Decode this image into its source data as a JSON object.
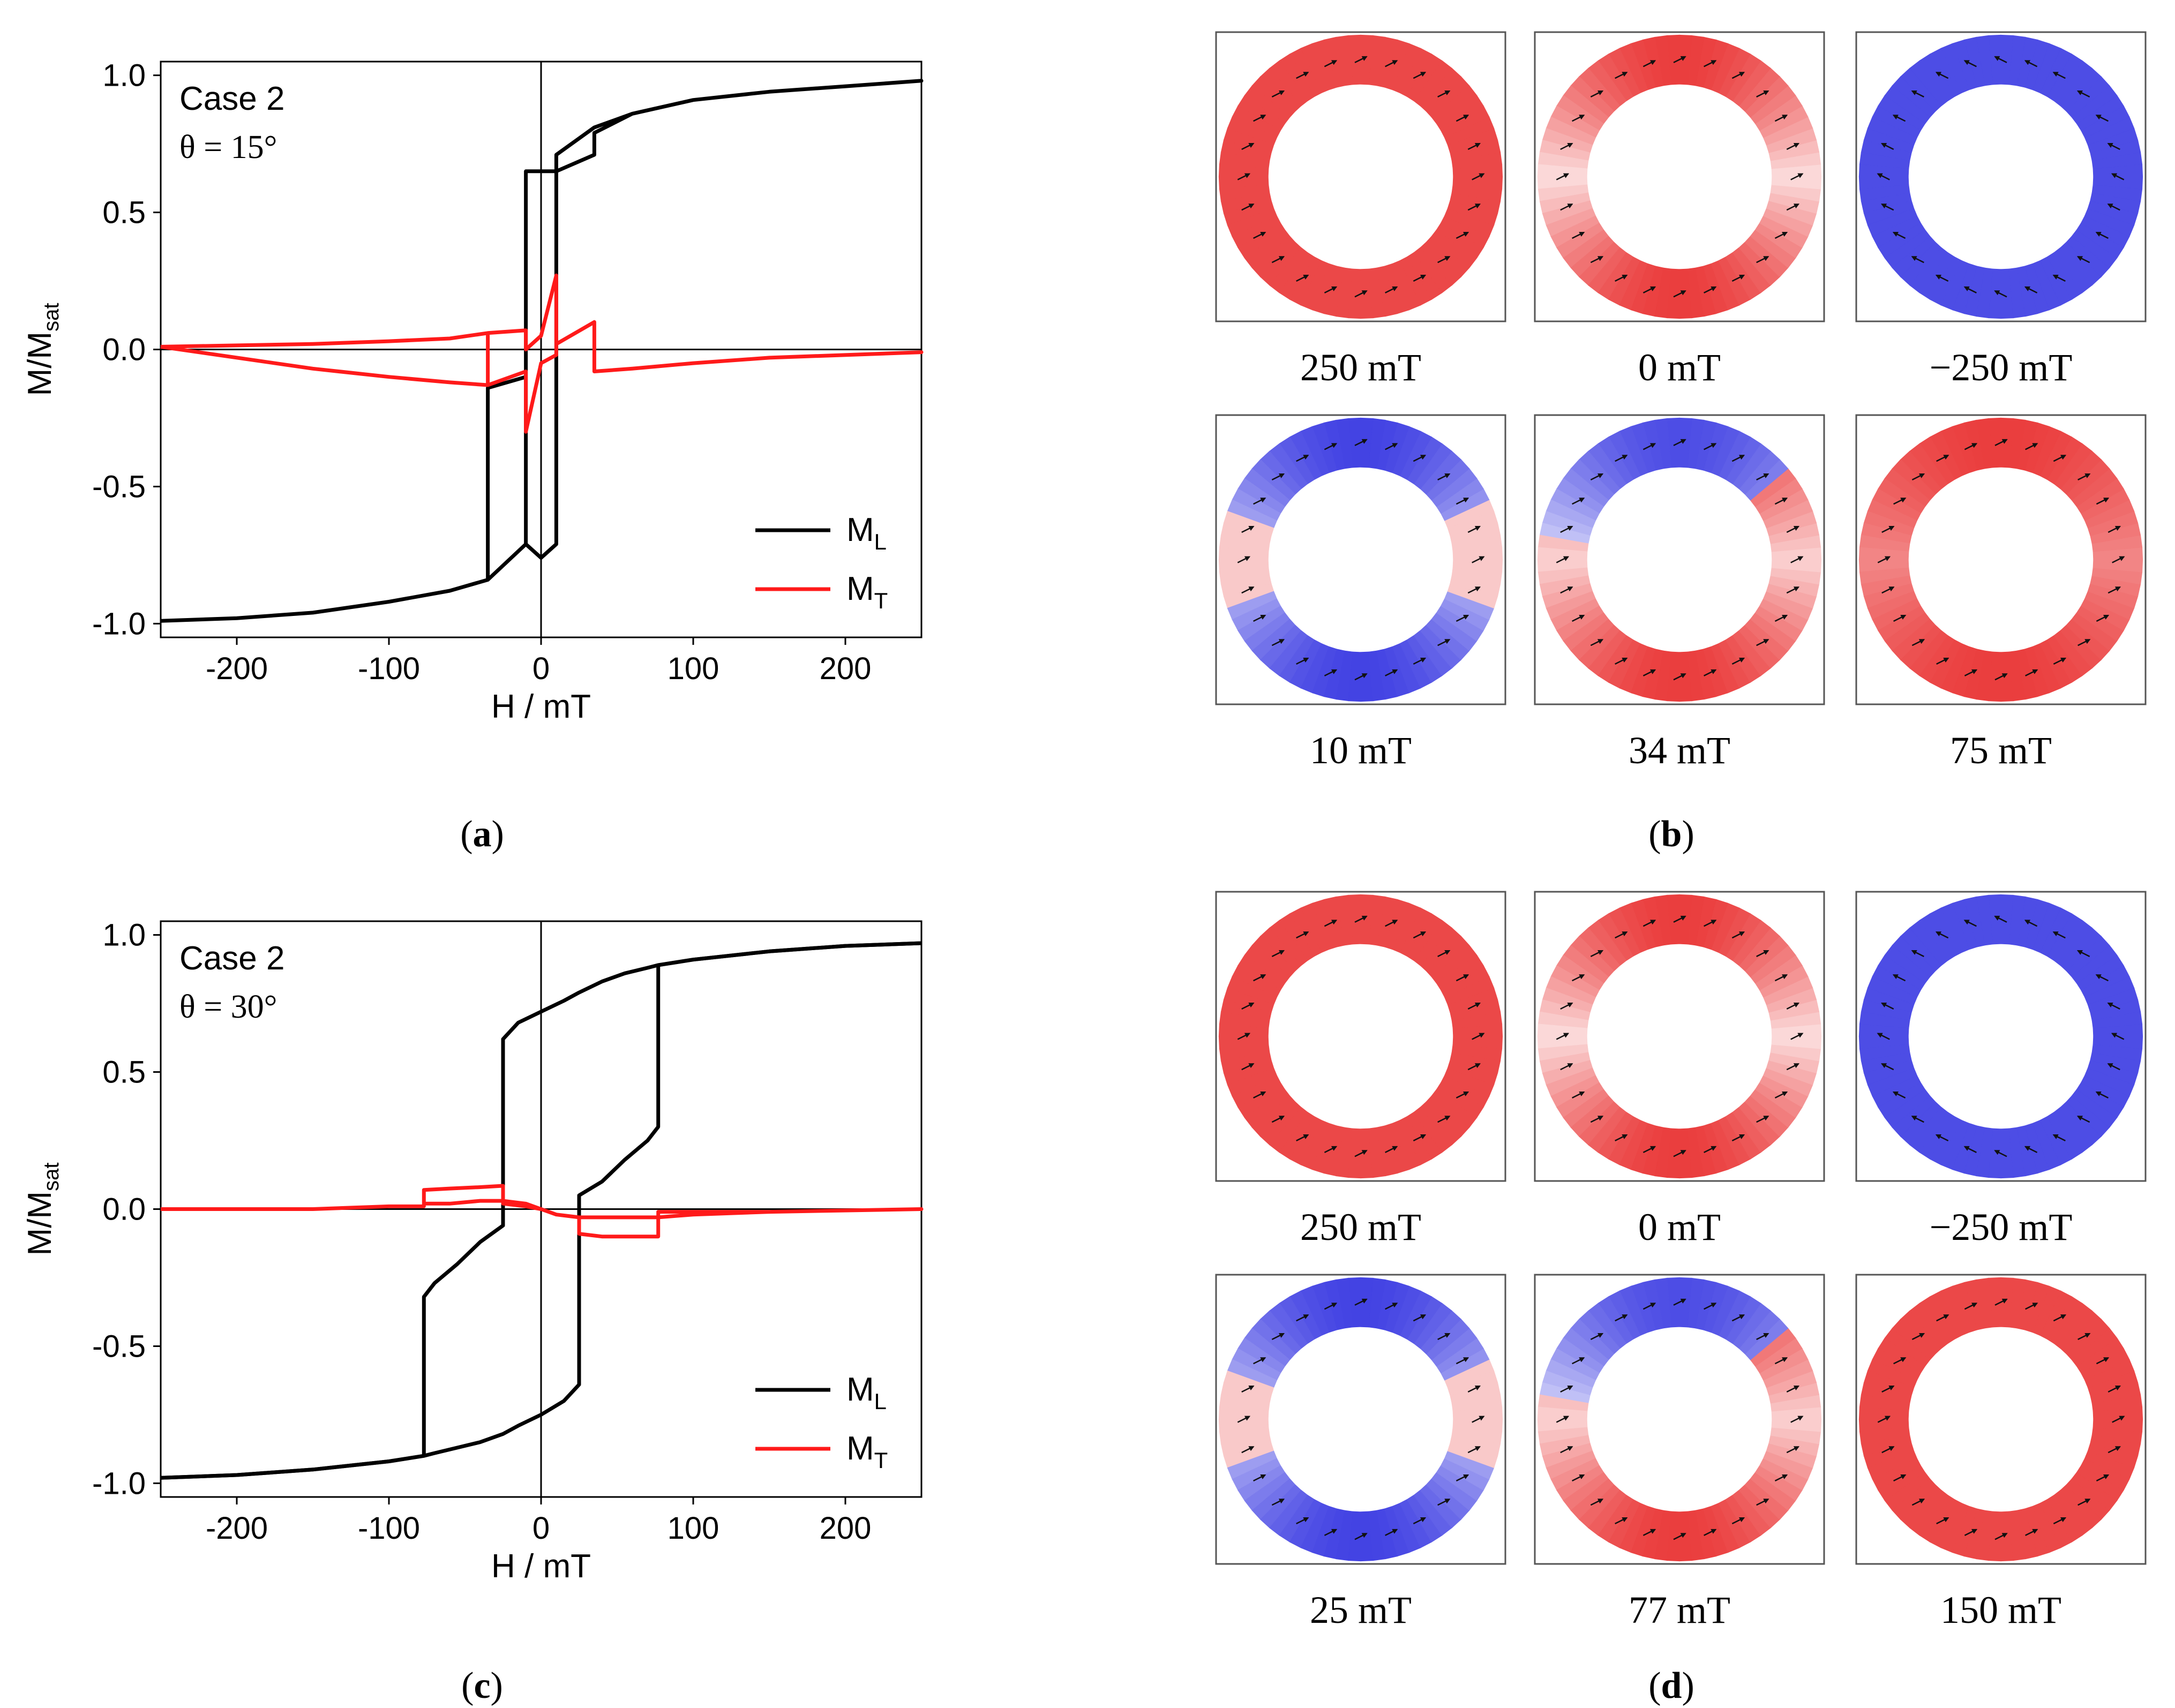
{
  "figure": {
    "panels": {
      "a": {
        "letter": "a"
      },
      "b": {
        "letter": "b"
      },
      "c": {
        "letter": "c"
      },
      "d": {
        "letter": "d"
      }
    },
    "ring_maps": {
      "b": [
        {
          "label": "250 mT",
          "state": "red"
        },
        {
          "label": "0 mT",
          "state": "onion"
        },
        {
          "label": "−250 mT",
          "state": "blue"
        },
        {
          "label": "10 mT",
          "state": "mixed-blue"
        },
        {
          "label": "34 mT",
          "state": "mixed-red"
        },
        {
          "label": "75 mT",
          "state": "red-walls"
        }
      ],
      "d": [
        {
          "label": "250 mT",
          "state": "red"
        },
        {
          "label": "0 mT",
          "state": "onion"
        },
        {
          "label": "−250 mT",
          "state": "blue"
        },
        {
          "label": "25 mT",
          "state": "mixed-blue"
        },
        {
          "label": "77 mT",
          "state": "mixed-red"
        },
        {
          "label": "150 mT",
          "state": "red"
        }
      ]
    },
    "colors": {
      "ml": "#000000",
      "mt": "#ff1a1a",
      "red_state": "#ea2a2a",
      "blue_state": "#2e2ee0"
    }
  },
  "chart_data": [
    {
      "type": "line",
      "panel": "a",
      "annotation": [
        "Case 2",
        "θ = 15°"
      ],
      "xlabel": "H / mT",
      "ylabel": {
        "main": "M/M",
        "sub": "sat"
      },
      "xlim": [
        -250,
        250
      ],
      "ylim": [
        -1.05,
        1.05
      ],
      "xticks": [
        -200,
        -100,
        0,
        100,
        200
      ],
      "xtick_labels": [
        "-200",
        "-100",
        "0",
        "100",
        "200"
      ],
      "yticks": [
        -1.0,
        -0.5,
        0.0,
        0.5,
        1.0
      ],
      "ytick_labels": [
        "-1.0",
        "-0.5",
        "0.0",
        "0.5",
        "1.0"
      ],
      "legend": {
        "position": "bottom-right",
        "entries": [
          {
            "name": "M",
            "sub": "L",
            "series": "ML"
          },
          {
            "name": "M",
            "sub": "T",
            "series": "MT"
          }
        ]
      },
      "series": [
        {
          "name": "ML",
          "color": "#000000",
          "x": [
            -250,
            -200,
            -150,
            -100,
            -60,
            -35,
            -35,
            -10,
            -10,
            0,
            10,
            10,
            35,
            35,
            60,
            100,
            150,
            200,
            250,
            250,
            200,
            150,
            100,
            60,
            35,
            10,
            10,
            -10,
            -10,
            -35,
            -60,
            -100,
            -150,
            -200,
            -250
          ],
          "y": [
            -0.99,
            -0.98,
            -0.96,
            -0.92,
            -0.88,
            -0.84,
            -0.14,
            -0.1,
            -0.71,
            -0.76,
            -0.71,
            0.65,
            0.71,
            0.79,
            0.86,
            0.91,
            0.94,
            0.96,
            0.98,
            0.98,
            0.96,
            0.94,
            0.91,
            0.86,
            0.81,
            0.71,
            0.65,
            0.65,
            -0.71,
            -0.84,
            -0.88,
            -0.92,
            -0.96,
            -0.98,
            -0.99
          ]
        },
        {
          "name": "MT",
          "color": "#ff1a1a",
          "x": [
            -250,
            -150,
            -100,
            -60,
            -35,
            -35,
            -10,
            -10,
            0,
            10,
            10,
            35,
            35,
            60,
            100,
            150,
            250,
            250,
            150,
            100,
            60,
            35,
            35,
            10,
            10,
            0,
            -10,
            -10,
            -35,
            -35,
            -60,
            -100,
            -150,
            -250
          ],
          "y": [
            0.01,
            0.02,
            0.03,
            0.04,
            0.06,
            -0.13,
            -0.08,
            -0.3,
            -0.05,
            -0.02,
            0.02,
            0.1,
            -0.08,
            -0.07,
            -0.05,
            -0.03,
            -0.01,
            -0.01,
            -0.03,
            -0.05,
            -0.07,
            -0.08,
            0.1,
            0.02,
            0.27,
            0.05,
            0.0,
            0.07,
            0.06,
            -0.13,
            -0.12,
            -0.1,
            -0.07,
            0.01
          ]
        }
      ]
    },
    {
      "type": "line",
      "panel": "c",
      "annotation": [
        "Case 2",
        "θ = 30°"
      ],
      "xlabel": "H / mT",
      "ylabel": {
        "main": "M/M",
        "sub": "sat"
      },
      "xlim": [
        -250,
        250
      ],
      "ylim": [
        -1.05,
        1.05
      ],
      "xticks": [
        -200,
        -100,
        0,
        100,
        200
      ],
      "xtick_labels": [
        "-200",
        "-100",
        "0",
        "100",
        "200"
      ],
      "yticks": [
        -1.0,
        -0.5,
        0.0,
        0.5,
        1.0
      ],
      "ytick_labels": [
        "-1.0",
        "-0.5",
        "0.0",
        "0.5",
        "1.0"
      ],
      "legend": {
        "position": "bottom-right",
        "entries": [
          {
            "name": "M",
            "sub": "L",
            "series": "ML"
          },
          {
            "name": "M",
            "sub": "T",
            "series": "MT"
          }
        ]
      },
      "series": [
        {
          "name": "ML",
          "color": "#000000",
          "x": [
            -250,
            -200,
            -150,
            -100,
            -77,
            -77,
            -70,
            -55,
            -40,
            -25,
            -25,
            -15,
            0,
            15,
            25,
            25,
            40,
            55,
            70,
            77,
            77,
            100,
            150,
            200,
            250
          ],
          "y": [
            -0.98,
            -0.97,
            -0.95,
            -0.92,
            -0.9,
            -0.32,
            -0.27,
            -0.2,
            -0.12,
            -0.06,
            0.62,
            0.68,
            0.72,
            0.76,
            0.79,
            0.79,
            0.83,
            0.86,
            0.88,
            0.89,
            0.89,
            0.91,
            0.94,
            0.96,
            0.97
          ]
        },
        {
          "name": "ML_back",
          "color": "#000000",
          "x": [
            250,
            200,
            150,
            100,
            77,
            77,
            70,
            55,
            40,
            25,
            25,
            15,
            0,
            -15,
            -25,
            -25,
            -40,
            -55,
            -70,
            -77,
            -77,
            -100,
            -150,
            -200,
            -250
          ],
          "y": [
            0.97,
            0.96,
            0.94,
            0.91,
            0.89,
            0.3,
            0.25,
            0.18,
            0.1,
            0.05,
            -0.64,
            -0.7,
            -0.75,
            -0.79,
            -0.82,
            -0.82,
            -0.85,
            -0.87,
            -0.89,
            -0.9,
            -0.9,
            -0.92,
            -0.95,
            -0.97,
            -0.98
          ]
        },
        {
          "name": "MT",
          "color": "#ff1a1a",
          "x": [
            -250,
            -150,
            -100,
            -77,
            -77,
            -60,
            -40,
            -25,
            -25,
            -10,
            0,
            10,
            25,
            25,
            40,
            60,
            77,
            77,
            100,
            150,
            250,
            250,
            150,
            100,
            77,
            77,
            60,
            40,
            25,
            25,
            10,
            0,
            -10,
            -25,
            -25,
            -40,
            -60,
            -77,
            -77,
            -100,
            -150,
            -250
          ],
          "y": [
            0.0,
            0.0,
            0.01,
            0.01,
            0.07,
            0.075,
            0.08,
            0.085,
            0.02,
            0.01,
            0.0,
            -0.02,
            -0.03,
            -0.03,
            -0.03,
            -0.03,
            -0.03,
            -0.03,
            -0.02,
            -0.01,
            0.0,
            0.0,
            -0.01,
            -0.01,
            -0.01,
            -0.1,
            -0.1,
            -0.1,
            -0.09,
            -0.03,
            -0.02,
            0.0,
            0.02,
            0.03,
            0.03,
            0.03,
            0.02,
            0.02,
            0.01,
            0.01,
            0.0,
            0.0
          ]
        }
      ]
    }
  ]
}
